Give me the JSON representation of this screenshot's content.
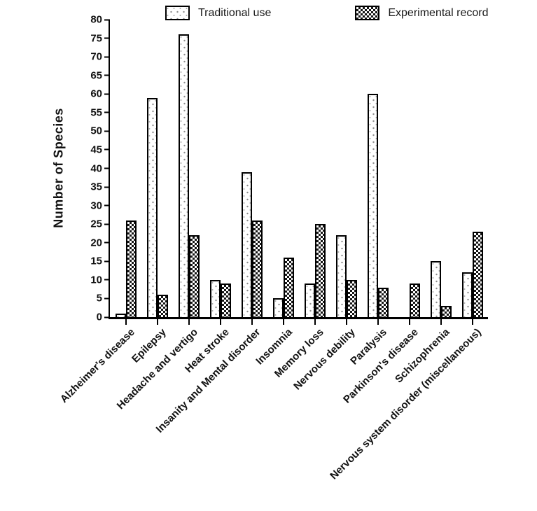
{
  "chart_data": {
    "type": "bar",
    "ylabel": "Number of Species",
    "ylim": [
      0,
      80
    ],
    "ytick_step": 5,
    "grid": false,
    "legend_position": "top",
    "background_color": "#ffffff",
    "axis_color": "#000000",
    "categories": [
      "Alzheimer's disease",
      "Epilepsy",
      "Headache and vertigo",
      "Heat stroke",
      "Insanity and Mental disorder",
      "Insomnia",
      "Memory loss",
      "Nervous debility",
      "Paralysis",
      "Parkinson's disease",
      "Schizophrenia",
      "Nervous system disorder (miscellaneous)"
    ],
    "series": [
      {
        "name": "Traditional use",
        "pattern": "stipple",
        "values": [
          1,
          59,
          76,
          10,
          39,
          5,
          9,
          22,
          60,
          0,
          15,
          12
        ]
      },
      {
        "name": "Experimental record",
        "pattern": "checker",
        "values": [
          26,
          6,
          22,
          9,
          26,
          16,
          25,
          10,
          8,
          9,
          3,
          23
        ]
      }
    ]
  }
}
